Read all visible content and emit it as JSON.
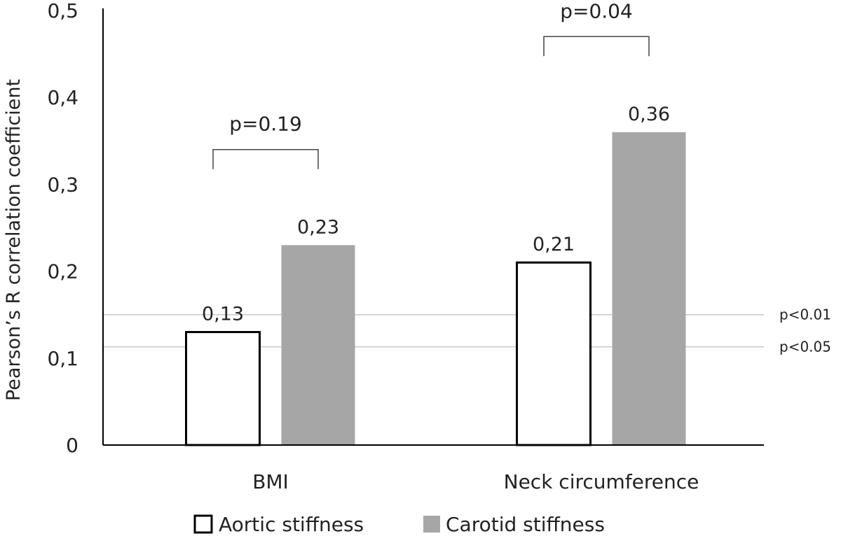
{
  "chart_data": {
    "type": "bar",
    "title": "",
    "ylabel": "Pearson’s R correlation coefficient",
    "xlabel": "",
    "ylim": [
      0,
      0.5
    ],
    "yticks": [
      0,
      0.1,
      0.2,
      0.3,
      0.4,
      0.5
    ],
    "ytick_labels": [
      "0",
      "0,1",
      "0,2",
      "0,3",
      "0,4",
      "0,5"
    ],
    "categories": [
      "BMI",
      "Neck circumference"
    ],
    "series": [
      {
        "name": "Aortic stiffness",
        "values": [
          0.13,
          0.21
        ],
        "labels": [
          "0,13",
          "0,21"
        ],
        "fill": "#ffffff",
        "stroke": "#000000"
      },
      {
        "name": "Carotid stiffness",
        "values": [
          0.23,
          0.36
        ],
        "labels": [
          "0,23",
          "0,36"
        ],
        "fill": "#a6a6a6",
        "stroke": "none"
      }
    ],
    "comparisons": [
      {
        "category": "BMI",
        "label": "p=0.19",
        "bracket_y": 0.34
      },
      {
        "category": "Neck circumference",
        "label": "p=0.04",
        "bracket_y": 0.47
      }
    ],
    "reference_lines": [
      {
        "value": 0.15,
        "label": "p<0.01"
      },
      {
        "value": 0.113,
        "label": "p<0.05"
      }
    ],
    "grid": false,
    "legend_position": "bottom"
  }
}
